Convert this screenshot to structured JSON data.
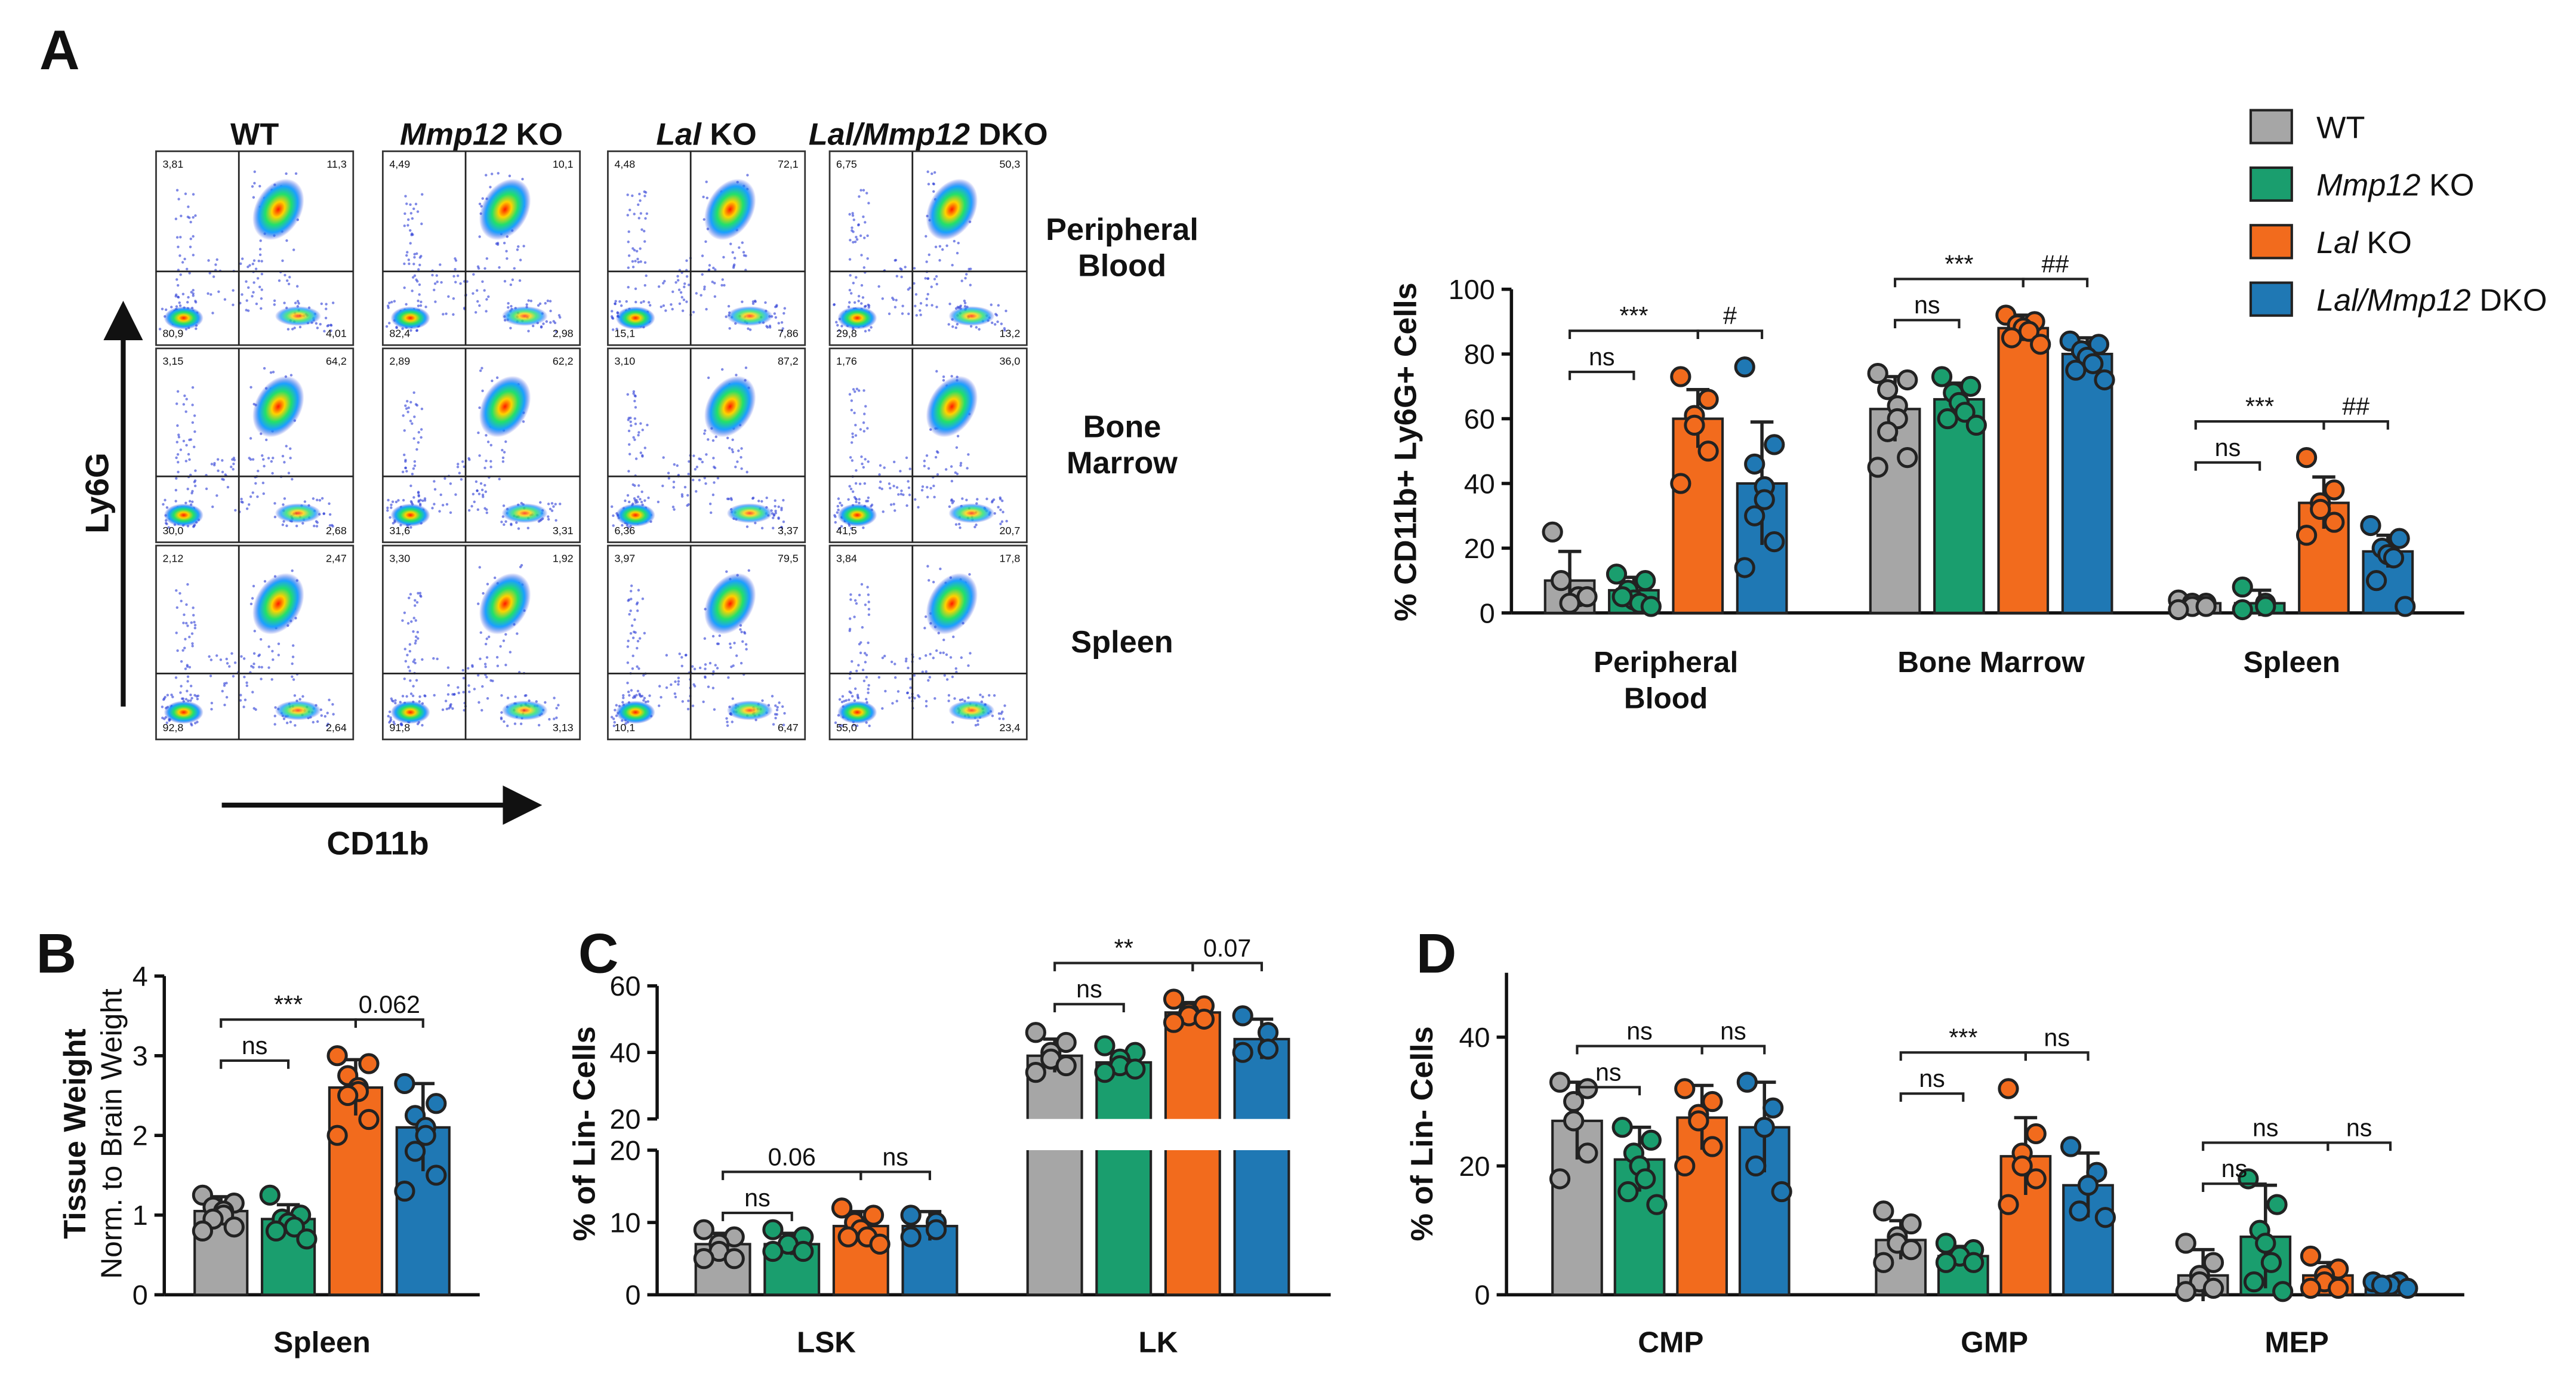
{
  "panel_labels": [
    "A",
    "B",
    "C",
    "D"
  ],
  "flow_panel": {
    "x_label": "CD11b",
    "y_label": "Ly6G",
    "rows": [
      [
        "Peripheral",
        "Blood"
      ],
      [
        "Bone",
        "Marrow"
      ],
      [
        "Spleen"
      ]
    ],
    "quadrants": [
      [
        [
          "3,81",
          "11,3",
          "80,9",
          "4,01"
        ],
        [
          "4,49",
          "10,1",
          "82,4",
          "2,98"
        ],
        [
          "4,48",
          "72,1",
          "15,1",
          "7,86"
        ],
        [
          "6,75",
          "50,3",
          "29,8",
          "13,2"
        ]
      ],
      [
        [
          "3,15",
          "64,2",
          "30,0",
          "2,68"
        ],
        [
          "2,89",
          "62,2",
          "31,6",
          "3,31"
        ],
        [
          "3,10",
          "87,2",
          "6,36",
          "3,37"
        ],
        [
          "1,76",
          "36,0",
          "41,5",
          "20,7"
        ]
      ],
      [
        [
          "2,12",
          "2,47",
          "92,8",
          "2,64"
        ],
        [
          "3,30",
          "1,92",
          "91,8",
          "3,13"
        ],
        [
          "3,97",
          "79,5",
          "10,1",
          "6,47"
        ],
        [
          "3,84",
          "17,8",
          "55,0",
          "23,4"
        ]
      ]
    ]
  },
  "chart_data": [
    {
      "type": "bar",
      "ylabel": "% CD11b+ Ly6G+ Cells",
      "legend": "top-right",
      "categories": [
        [
          "Peripheral",
          "Blood"
        ],
        [
          "Bone Marrow"
        ],
        [
          "Spleen"
        ]
      ],
      "ylim": [
        0,
        100
      ],
      "yticks": [
        0,
        20,
        40,
        60,
        80,
        100
      ],
      "series": [
        {
          "name": "WT",
          "color": "#a6a6a6",
          "values": [
            10,
            63,
            3
          ],
          "errors": [
            9,
            10,
            1.5
          ],
          "points": [
            [
              25,
              5,
              3,
              10,
              5
            ],
            [
              74,
              72,
              69,
              64,
              60,
              56,
              48,
              45
            ],
            [
              4,
              3,
              3,
              2,
              2,
              1
            ]
          ]
        },
        {
          "name": "Mmp12 KO",
          "italic_lead": true,
          "color": "#1a9e6e",
          "values": [
            7,
            66,
            3
          ],
          "errors": [
            4,
            5,
            4
          ],
          "points": [
            [
              12,
              10,
              7,
              4,
              3,
              5,
              2
            ],
            [
              73,
              70,
              68,
              65,
              62,
              60,
              58
            ],
            [
              8,
              3,
              2,
              1
            ]
          ]
        },
        {
          "name": "Lal KO",
          "italic_lead": true,
          "color": "#f26b1d",
          "values": [
            60,
            88,
            34
          ],
          "errors": [
            9,
            4,
            8
          ],
          "points": [
            [
              73,
              66,
              61,
              58,
              50,
              40
            ],
            [
              92,
              90,
              89,
              88,
              87,
              85,
              83
            ],
            [
              48,
              38,
              34,
              32,
              28,
              24
            ]
          ]
        },
        {
          "name": "Lal/Mmp12 DKO",
          "italic_lead": true,
          "color": "#1f78b4",
          "values": [
            40,
            80,
            19
          ],
          "errors": [
            19,
            5,
            5
          ],
          "points": [
            [
              76,
              52,
              46,
              39,
              35,
              30,
              22,
              14
            ],
            [
              84,
              83,
              81,
              79,
              77,
              75,
              72
            ],
            [
              27,
              23,
              20,
              18,
              17,
              10,
              2
            ]
          ]
        }
      ],
      "comparisons": [
        {
          "category": 0,
          "from": 0,
          "to": 1,
          "label": "ns"
        },
        {
          "category": 0,
          "from": 0,
          "to": 2,
          "label": "***"
        },
        {
          "category": 0,
          "from": 2,
          "to": 3,
          "label": "#"
        },
        {
          "category": 1,
          "from": 0,
          "to": 1,
          "label": "ns"
        },
        {
          "category": 1,
          "from": 0,
          "to": 2,
          "label": "***"
        },
        {
          "category": 1,
          "from": 2,
          "to": 3,
          "label": "##"
        },
        {
          "category": 2,
          "from": 0,
          "to": 1,
          "label": "ns"
        },
        {
          "category": 2,
          "from": 0,
          "to": 2,
          "label": "***"
        },
        {
          "category": 2,
          "from": 2,
          "to": 3,
          "label": "##"
        }
      ]
    },
    {
      "type": "bar",
      "ylabel": "Tissue Weight",
      "ysublabel": "Norm. to Brain Weight",
      "categories": [
        [
          "Spleen"
        ]
      ],
      "ylim": [
        0,
        4
      ],
      "yticks": [
        0,
        1,
        2,
        3,
        4
      ],
      "series": [
        {
          "color": "#a6a6a6",
          "values": [
            1.05
          ],
          "errors": [
            0.18
          ],
          "points": [
            [
              1.25,
              1.15,
              1.1,
              1.05,
              1.0,
              0.95,
              0.85,
              0.8
            ]
          ]
        },
        {
          "color": "#1a9e6e",
          "values": [
            0.95
          ],
          "errors": [
            0.18
          ],
          "points": [
            [
              1.25,
              1.0,
              0.95,
              0.9,
              0.85,
              0.8,
              0.7
            ]
          ]
        },
        {
          "color": "#f26b1d",
          "values": [
            2.6
          ],
          "errors": [
            0.35
          ],
          "points": [
            [
              3.0,
              2.9,
              2.75,
              2.6,
              2.55,
              2.5,
              2.2,
              2.0
            ]
          ]
        },
        {
          "color": "#1f78b4",
          "values": [
            2.1
          ],
          "errors": [
            0.55
          ],
          "points": [
            [
              2.65,
              2.4,
              2.25,
              2.1,
              2.0,
              1.8,
              1.5,
              1.3
            ]
          ]
        }
      ],
      "comparisons": [
        {
          "category": 0,
          "from": 0,
          "to": 1,
          "label": "ns"
        },
        {
          "category": 0,
          "from": 0,
          "to": 2,
          "label": "***"
        },
        {
          "category": 0,
          "from": 2,
          "to": 3,
          "label": "0.062"
        }
      ]
    },
    {
      "type": "bar",
      "ylabel": "% of Lin- Cells",
      "categories": [
        [
          "LSK"
        ],
        [
          "LK"
        ]
      ],
      "ysegments": [
        {
          "ylim": [
            0,
            20
          ],
          "yticks": [
            0,
            10,
            20
          ]
        },
        {
          "ylim": [
            20,
            60
          ],
          "yticks": [
            20,
            40,
            60
          ]
        }
      ],
      "series": [
        {
          "color": "#a6a6a6",
          "values": [
            7,
            39
          ],
          "errors": [
            1.5,
            5
          ],
          "points": [
            [
              9,
              8,
              7,
              6,
              5,
              5
            ],
            [
              46,
              43,
              40,
              38,
              36,
              34
            ]
          ]
        },
        {
          "color": "#1a9e6e",
          "values": [
            7,
            37
          ],
          "errors": [
            1.5,
            3
          ],
          "points": [
            [
              9,
              8,
              7,
              7,
              6,
              6
            ],
            [
              42,
              40,
              38,
              36,
              35,
              34
            ]
          ]
        },
        {
          "color": "#f26b1d",
          "values": [
            9.5,
            52
          ],
          "errors": [
            2,
            3
          ],
          "points": [
            [
              12,
              11,
              10,
              9,
              8,
              8,
              7
            ],
            [
              56,
              54,
              52,
              51,
              50,
              49
            ]
          ]
        },
        {
          "color": "#1f78b4",
          "values": [
            9.5,
            44
          ],
          "errors": [
            2,
            6
          ],
          "points": [
            [
              11,
              10,
              9,
              8
            ],
            [
              51,
              46,
              41,
              40
            ]
          ]
        }
      ],
      "comparisons": [
        {
          "category": 0,
          "from": 0,
          "to": 1,
          "label": "ns"
        },
        {
          "category": 0,
          "from": 0,
          "to": 2,
          "label": "0.06"
        },
        {
          "category": 0,
          "from": 2,
          "to": 3,
          "label": "ns"
        },
        {
          "category": 1,
          "from": 0,
          "to": 1,
          "label": "ns"
        },
        {
          "category": 1,
          "from": 0,
          "to": 2,
          "label": "**"
        },
        {
          "category": 1,
          "from": 2,
          "to": 3,
          "label": "0.07"
        }
      ]
    },
    {
      "type": "bar",
      "ylabel": "% of Lin- Cells",
      "categories": [
        [
          "CMP"
        ],
        [
          "GMP"
        ],
        [
          "MEP"
        ]
      ],
      "ylim": [
        0,
        50
      ],
      "yticks": [
        0,
        20,
        40
      ],
      "series": [
        {
          "color": "#a6a6a6",
          "values": [
            27,
            8.5,
            3
          ],
          "errors": [
            6,
            3,
            4
          ],
          "points": [
            [
              33,
              32,
              30,
              27,
              22,
              18
            ],
            [
              13,
              11,
              9,
              8,
              7,
              5
            ],
            [
              8,
              5,
              3,
              2,
              1,
              0.5
            ]
          ]
        },
        {
          "color": "#1a9e6e",
          "values": [
            21,
            6,
            9
          ],
          "errors": [
            5,
            1.5,
            8
          ],
          "points": [
            [
              26,
              24,
              22,
              20,
              18,
              16,
              14
            ],
            [
              8,
              7,
              6,
              6,
              5,
              5
            ],
            [
              18,
              14,
              10,
              8,
              5,
              2,
              0.5
            ]
          ]
        },
        {
          "color": "#f26b1d",
          "values": [
            27.5,
            21.5,
            3
          ],
          "errors": [
            5,
            6,
            2
          ],
          "points": [
            [
              32,
              30,
              28,
              27,
              23,
              20
            ],
            [
              32,
              25,
              22,
              20,
              18,
              14
            ],
            [
              6,
              4,
              3,
              2,
              1,
              1
            ]
          ]
        },
        {
          "color": "#1f78b4",
          "values": [
            26,
            17,
            1.5
          ],
          "errors": [
            7,
            5,
            0.5
          ],
          "points": [
            [
              33,
              29,
              26,
              20,
              16
            ],
            [
              23,
              19,
              17,
              13,
              12
            ],
            [
              2,
              2,
              1.5,
              1.5,
              1
            ]
          ]
        }
      ],
      "comparisons": [
        {
          "category": 0,
          "from": 0,
          "to": 1,
          "label": "ns"
        },
        {
          "category": 0,
          "from": 0,
          "to": 2,
          "label": "ns"
        },
        {
          "category": 0,
          "from": 2,
          "to": 3,
          "label": "ns"
        },
        {
          "category": 1,
          "from": 0,
          "to": 1,
          "label": "ns"
        },
        {
          "category": 1,
          "from": 0,
          "to": 2,
          "label": "***"
        },
        {
          "category": 1,
          "from": 2,
          "to": 3,
          "label": "ns"
        },
        {
          "category": 2,
          "from": 0,
          "to": 1,
          "label": "ns"
        },
        {
          "category": 2,
          "from": 0,
          "to": 2,
          "label": "ns"
        },
        {
          "category": 2,
          "from": 2,
          "to": 3,
          "label": "ns"
        }
      ]
    }
  ]
}
